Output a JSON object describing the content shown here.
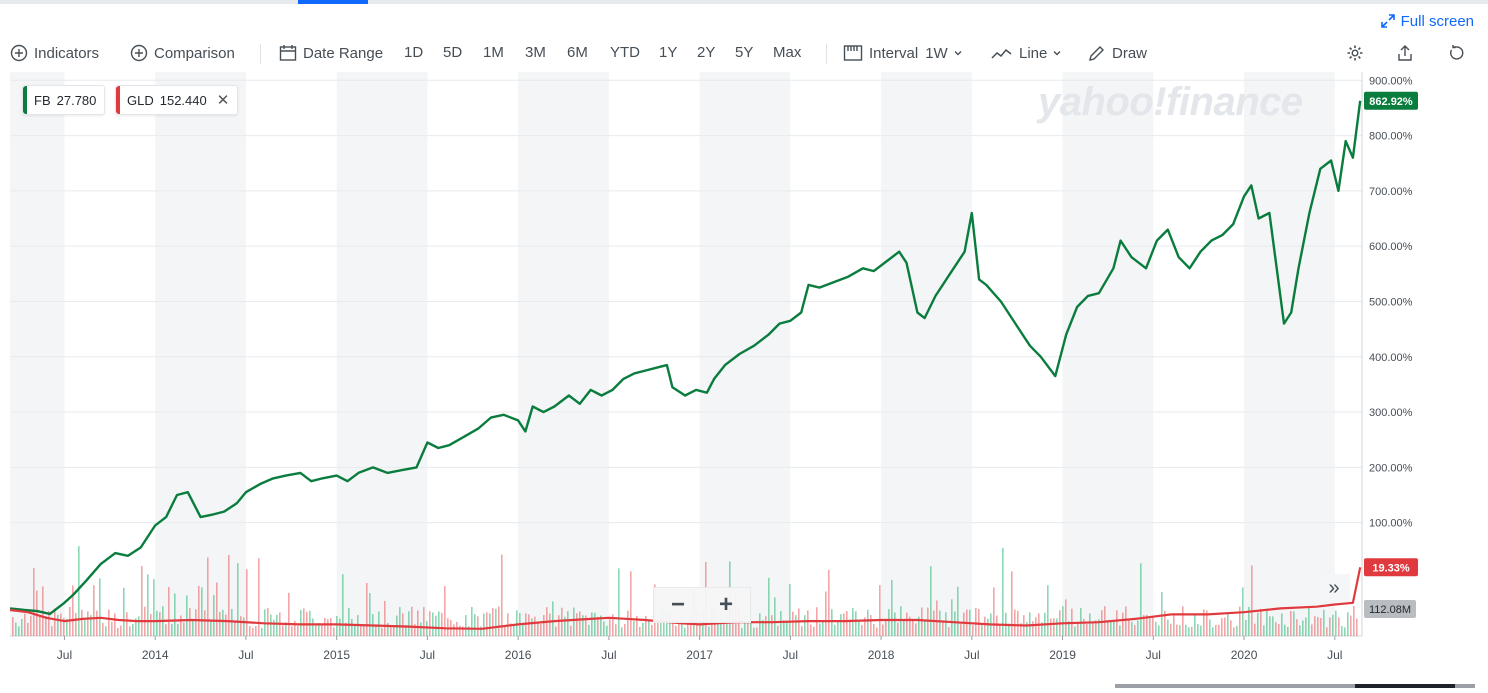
{
  "colors": {
    "fb": "#0a7d3e",
    "gld": "#e03a3e",
    "accent": "#0f69ff",
    "vol_up": "#2fb776",
    "vol_down": "#e85c5f",
    "band": "#f4f5f6"
  },
  "header": {
    "fullscreen_label": "Full screen",
    "fullscreen_icon": "expand-arrows-icon"
  },
  "toolbar": {
    "indicators": "Indicators",
    "comparison": "Comparison",
    "date_range": "Date Range",
    "ranges": [
      "1D",
      "5D",
      "1M",
      "3M",
      "6M",
      "YTD",
      "1Y",
      "2Y",
      "5Y",
      "Max"
    ],
    "interval_label": "Interval",
    "interval_value": "1W",
    "chart_type": "Line",
    "draw": "Draw",
    "icons": [
      "plus-circle-icon",
      "calendar-icon",
      "candlestick-icon",
      "line-chart-icon",
      "pencil-icon",
      "gear-icon",
      "share-icon",
      "reset-icon"
    ]
  },
  "legend": {
    "fb_symbol": "FB",
    "fb_value": "27.780",
    "gld_symbol": "GLD",
    "gld_value": "152.440",
    "close": "✕"
  },
  "watermark": "yahoo!finance",
  "zoom": {
    "minus": "−",
    "plus": "+"
  },
  "expand_glyph": "»",
  "chart_data": {
    "type": "line",
    "y_unit": "% change",
    "ylim": [
      -105,
      915
    ],
    "y_ticks": [
      100,
      200,
      300,
      400,
      500,
      600,
      700,
      800,
      900
    ],
    "y_tick_labels": [
      "100.00%",
      "200.00%",
      "300.00%",
      "400.00%",
      "500.00%",
      "600.00%",
      "700.00%",
      "800.00%",
      "900.00%"
    ],
    "x_range": [
      2013.2,
      2020.65
    ],
    "x_ticks": [
      2013.5,
      2014.0,
      2014.5,
      2015.0,
      2015.5,
      2016.0,
      2016.5,
      2017.0,
      2017.5,
      2018.0,
      2018.5,
      2019.0,
      2019.5,
      2020.0,
      2020.5
    ],
    "x_tick_labels": [
      "Jul",
      "2014",
      "Jul",
      "2015",
      "Jul",
      "2016",
      "Jul",
      "2017",
      "Jul",
      "2018",
      "Jul",
      "2019",
      "Jul",
      "2020",
      "Jul"
    ],
    "grid": true,
    "series": [
      {
        "name": "FB",
        "last_label": "862.92%",
        "points": [
          [
            2013.2,
            -55
          ],
          [
            2013.28,
            -58
          ],
          [
            2013.35,
            -60
          ],
          [
            2013.42,
            -65
          ],
          [
            2013.5,
            -45
          ],
          [
            2013.55,
            -30
          ],
          [
            2013.62,
            -5
          ],
          [
            2013.7,
            25
          ],
          [
            2013.78,
            45
          ],
          [
            2013.85,
            40
          ],
          [
            2013.92,
            55
          ],
          [
            2014.0,
            95
          ],
          [
            2014.06,
            110
          ],
          [
            2014.12,
            150
          ],
          [
            2014.18,
            155
          ],
          [
            2014.25,
            110
          ],
          [
            2014.32,
            115
          ],
          [
            2014.38,
            120
          ],
          [
            2014.45,
            135
          ],
          [
            2014.5,
            155
          ],
          [
            2014.58,
            170
          ],
          [
            2014.65,
            180
          ],
          [
            2014.72,
            185
          ],
          [
            2014.8,
            190
          ],
          [
            2014.86,
            175
          ],
          [
            2014.92,
            180
          ],
          [
            2015.0,
            185
          ],
          [
            2015.06,
            175
          ],
          [
            2015.12,
            190
          ],
          [
            2015.2,
            200
          ],
          [
            2015.28,
            190
          ],
          [
            2015.36,
            195
          ],
          [
            2015.44,
            200
          ],
          [
            2015.5,
            245
          ],
          [
            2015.56,
            235
          ],
          [
            2015.62,
            240
          ],
          [
            2015.7,
            255
          ],
          [
            2015.78,
            270
          ],
          [
            2015.85,
            290
          ],
          [
            2015.92,
            295
          ],
          [
            2016.0,
            285
          ],
          [
            2016.04,
            265
          ],
          [
            2016.08,
            310
          ],
          [
            2016.14,
            300
          ],
          [
            2016.2,
            310
          ],
          [
            2016.28,
            330
          ],
          [
            2016.34,
            315
          ],
          [
            2016.4,
            340
          ],
          [
            2016.46,
            330
          ],
          [
            2016.52,
            340
          ],
          [
            2016.58,
            360
          ],
          [
            2016.64,
            370
          ],
          [
            2016.7,
            375
          ],
          [
            2016.76,
            380
          ],
          [
            2016.82,
            385
          ],
          [
            2016.85,
            345
          ],
          [
            2016.92,
            330
          ],
          [
            2016.98,
            340
          ],
          [
            2017.04,
            335
          ],
          [
            2017.08,
            360
          ],
          [
            2017.14,
            385
          ],
          [
            2017.22,
            405
          ],
          [
            2017.3,
            420
          ],
          [
            2017.38,
            440
          ],
          [
            2017.44,
            460
          ],
          [
            2017.5,
            465
          ],
          [
            2017.56,
            480
          ],
          [
            2017.6,
            530
          ],
          [
            2017.66,
            525
          ],
          [
            2017.74,
            535
          ],
          [
            2017.82,
            545
          ],
          [
            2017.9,
            560
          ],
          [
            2017.96,
            555
          ],
          [
            2018.04,
            575
          ],
          [
            2018.1,
            590
          ],
          [
            2018.14,
            570
          ],
          [
            2018.2,
            480
          ],
          [
            2018.24,
            470
          ],
          [
            2018.3,
            510
          ],
          [
            2018.38,
            550
          ],
          [
            2018.46,
            590
          ],
          [
            2018.5,
            660
          ],
          [
            2018.54,
            540
          ],
          [
            2018.58,
            530
          ],
          [
            2018.66,
            500
          ],
          [
            2018.74,
            460
          ],
          [
            2018.82,
            420
          ],
          [
            2018.88,
            400
          ],
          [
            2018.96,
            365
          ],
          [
            2019.02,
            440
          ],
          [
            2019.08,
            490
          ],
          [
            2019.14,
            510
          ],
          [
            2019.2,
            515
          ],
          [
            2019.28,
            560
          ],
          [
            2019.32,
            610
          ],
          [
            2019.38,
            580
          ],
          [
            2019.46,
            560
          ],
          [
            2019.52,
            610
          ],
          [
            2019.58,
            630
          ],
          [
            2019.64,
            580
          ],
          [
            2019.7,
            560
          ],
          [
            2019.76,
            590
          ],
          [
            2019.82,
            610
          ],
          [
            2019.88,
            620
          ],
          [
            2019.94,
            640
          ],
          [
            2020.0,
            690
          ],
          [
            2020.04,
            710
          ],
          [
            2020.08,
            650
          ],
          [
            2020.14,
            660
          ],
          [
            2020.18,
            560
          ],
          [
            2020.22,
            460
          ],
          [
            2020.26,
            480
          ],
          [
            2020.3,
            560
          ],
          [
            2020.36,
            660
          ],
          [
            2020.42,
            740
          ],
          [
            2020.48,
            755
          ],
          [
            2020.52,
            700
          ],
          [
            2020.56,
            790
          ],
          [
            2020.6,
            760
          ],
          [
            2020.64,
            862.92
          ]
        ]
      },
      {
        "name": "GLD",
        "last_label": "19.33%",
        "points": [
          [
            2013.2,
            -58
          ],
          [
            2013.3,
            -62
          ],
          [
            2013.4,
            -72
          ],
          [
            2013.5,
            -78
          ],
          [
            2013.6,
            -74
          ],
          [
            2013.7,
            -72
          ],
          [
            2013.8,
            -76
          ],
          [
            2013.9,
            -78
          ],
          [
            2014.0,
            -78
          ],
          [
            2014.2,
            -76
          ],
          [
            2014.4,
            -78
          ],
          [
            2014.6,
            -82
          ],
          [
            2014.8,
            -84
          ],
          [
            2015.0,
            -84
          ],
          [
            2015.2,
            -86
          ],
          [
            2015.4,
            -88
          ],
          [
            2015.6,
            -91
          ],
          [
            2015.8,
            -92
          ],
          [
            2016.0,
            -84
          ],
          [
            2016.2,
            -78
          ],
          [
            2016.4,
            -74
          ],
          [
            2016.5,
            -72
          ],
          [
            2016.7,
            -76
          ],
          [
            2016.9,
            -82
          ],
          [
            2017.0,
            -84
          ],
          [
            2017.2,
            -80
          ],
          [
            2017.4,
            -80
          ],
          [
            2017.6,
            -78
          ],
          [
            2017.8,
            -78
          ],
          [
            2018.0,
            -76
          ],
          [
            2018.2,
            -76
          ],
          [
            2018.4,
            -80
          ],
          [
            2018.6,
            -84
          ],
          [
            2018.8,
            -86
          ],
          [
            2019.0,
            -82
          ],
          [
            2019.2,
            -80
          ],
          [
            2019.4,
            -74
          ],
          [
            2019.6,
            -66
          ],
          [
            2019.8,
            -66
          ],
          [
            2020.0,
            -62
          ],
          [
            2020.2,
            -55
          ],
          [
            2020.4,
            -52
          ],
          [
            2020.5,
            -48
          ],
          [
            2020.6,
            -45
          ],
          [
            2020.64,
            19.33
          ]
        ]
      }
    ],
    "volume": {
      "last_label": "112.08M"
    }
  }
}
